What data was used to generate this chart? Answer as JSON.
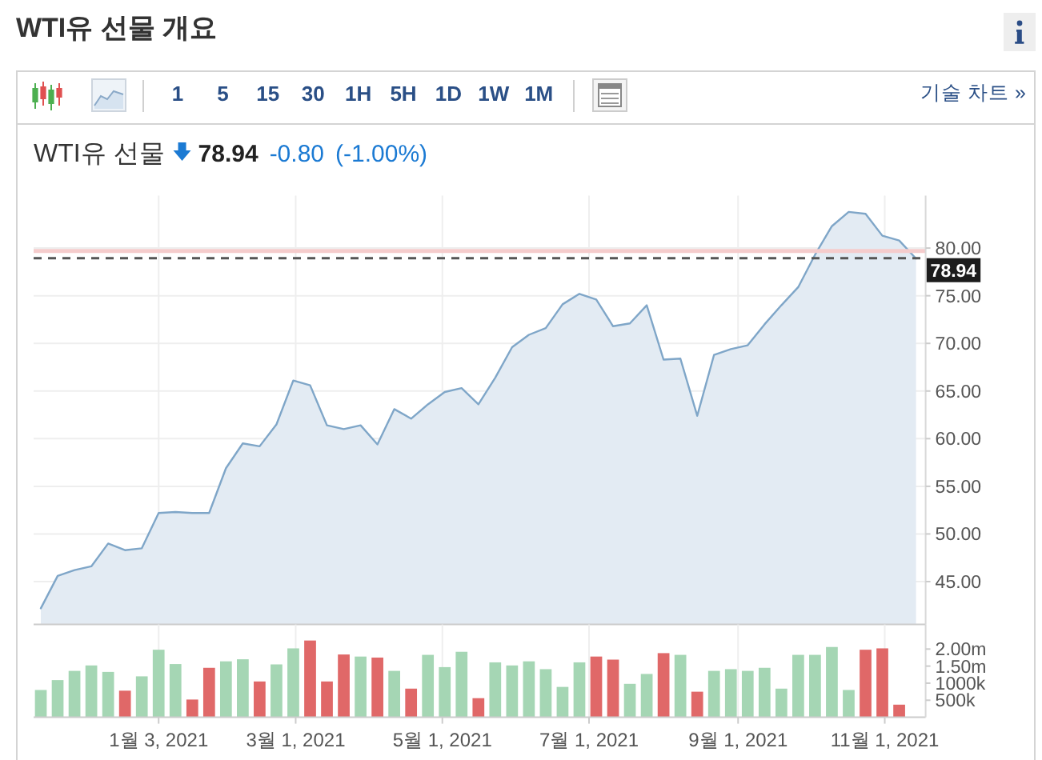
{
  "chart_data": [
    {
      "type": "other",
      "title": "WTI유 선물 개요",
      "annotations": [
        "1 5 15 30 1H 5H 1D 1W 1M",
        "기술 차트 »"
      ]
    },
    {
      "type": "area",
      "title": "WTI유 선물",
      "annotations": [
        "78.94",
        "-0.80",
        "(-1.00%)"
      ],
      "x": [
        "2020-11-15",
        "2020-11-22",
        "2020-11-29",
        "2020-12-06",
        "2020-12-13",
        "2020-12-20",
        "2020-12-27",
        "2021-01-03",
        "2021-01-10",
        "2021-01-17",
        "2021-01-24",
        "2021-01-31",
        "2021-02-07",
        "2021-02-14",
        "2021-02-21",
        "2021-02-28",
        "2021-03-07",
        "2021-03-14",
        "2021-03-21",
        "2021-03-28",
        "2021-04-04",
        "2021-04-11",
        "2021-04-18",
        "2021-04-25",
        "2021-05-02",
        "2021-05-09",
        "2021-05-16",
        "2021-05-23",
        "2021-05-30",
        "2021-06-06",
        "2021-06-13",
        "2021-06-20",
        "2021-06-27",
        "2021-07-04",
        "2021-07-11",
        "2021-07-18",
        "2021-07-25",
        "2021-08-01",
        "2021-08-08",
        "2021-08-15",
        "2021-08-22",
        "2021-08-29",
        "2021-09-05",
        "2021-09-12",
        "2021-09-19",
        "2021-09-26",
        "2021-10-03",
        "2021-10-10",
        "2021-10-17",
        "2021-10-24",
        "2021-10-31",
        "2021-11-07",
        "2021-11-14"
      ],
      "values": [
        42.2,
        45.6,
        46.2,
        46.6,
        49.0,
        48.3,
        48.5,
        52.2,
        52.3,
        52.2,
        52.2,
        56.9,
        59.5,
        59.2,
        61.5,
        66.1,
        65.6,
        61.4,
        61.0,
        61.4,
        59.4,
        63.1,
        62.1,
        63.6,
        64.9,
        65.3,
        63.6,
        66.4,
        69.6,
        70.9,
        71.6,
        74.1,
        75.2,
        74.6,
        71.8,
        72.1,
        74.0,
        68.3,
        68.4,
        62.4,
        68.8,
        69.4,
        69.8,
        72.0,
        74.0,
        75.9,
        79.3,
        82.3,
        83.8,
        83.6,
        81.3,
        80.8,
        78.9
      ],
      "color": "#7fa6c8",
      "xlim": [
        "2020-11-12",
        "2021-11-18"
      ],
      "xticks": [
        {
          "value": "2021-01-03",
          "label": null
        },
        {
          "value": "2021-03-01",
          "label": null
        },
        {
          "value": "2021-05-01",
          "label": null
        },
        {
          "value": "2021-07-01",
          "label": null
        },
        {
          "value": "2021-09-01",
          "label": null
        },
        {
          "value": "2021-11-01",
          "label": null
        }
      ],
      "ylim": [
        40.5,
        85.5
      ],
      "yticks": [
        {
          "value": 45,
          "label": "45.00"
        },
        {
          "value": 50,
          "label": "50.00"
        },
        {
          "value": 55,
          "label": "55.00"
        },
        {
          "value": 60,
          "label": "60.00"
        },
        {
          "value": 65,
          "label": "65.00"
        },
        {
          "value": 70,
          "label": "70.00"
        },
        {
          "value": 75,
          "label": "75.00"
        },
        {
          "value": 80,
          "label": "80.00"
        }
      ],
      "ref_lines": [
        {
          "axis": "y",
          "value": 79.7,
          "color": "#f5cccc"
        },
        {
          "axis": "y",
          "value": 78.94,
          "label": "78.94",
          "color": "#555555",
          "line_style": "dashed"
        }
      ],
      "grid": true,
      "tick_labels": "y"
    },
    {
      "type": "bar",
      "x": [
        "2020-11-15",
        "2020-11-22",
        "2020-11-29",
        "2020-12-06",
        "2020-12-13",
        "2020-12-20",
        "2020-12-27",
        "2021-01-03",
        "2021-01-10",
        "2021-01-17",
        "2021-01-24",
        "2021-01-31",
        "2021-02-07",
        "2021-02-14",
        "2021-02-21",
        "2021-02-28",
        "2021-03-07",
        "2021-03-14",
        "2021-03-21",
        "2021-03-28",
        "2021-04-04",
        "2021-04-11",
        "2021-04-18",
        "2021-04-25",
        "2021-05-02",
        "2021-05-09",
        "2021-05-16",
        "2021-05-23",
        "2021-05-30",
        "2021-06-06",
        "2021-06-13",
        "2021-06-20",
        "2021-06-27",
        "2021-07-04",
        "2021-07-11",
        "2021-07-18",
        "2021-07-25",
        "2021-08-01",
        "2021-08-08",
        "2021-08-15",
        "2021-08-22",
        "2021-08-29",
        "2021-09-05",
        "2021-09-12",
        "2021-09-19",
        "2021-09-26",
        "2021-10-03",
        "2021-10-10",
        "2021-10-17",
        "2021-10-24",
        "2021-10-31",
        "2021-11-07"
      ],
      "values": [
        800000,
        1090000,
        1360000,
        1520000,
        1330000,
        780000,
        1200000,
        1980000,
        1560000,
        520000,
        1450000,
        1640000,
        1700000,
        1050000,
        1550000,
        2020000,
        2250000,
        1050000,
        1840000,
        1780000,
        1750000,
        1360000,
        840000,
        1830000,
        1470000,
        1920000,
        560000,
        1610000,
        1520000,
        1640000,
        1410000,
        890000,
        1610000,
        1780000,
        1690000,
        980000,
        1270000,
        1880000,
        1830000,
        750000,
        1360000,
        1410000,
        1360000,
        1450000,
        840000,
        1830000,
        1830000,
        2060000,
        800000,
        1980000,
        2020000,
        370000
      ],
      "colors": [
        "#a5d6b4",
        "#a5d6b4",
        "#a5d6b4",
        "#a5d6b4",
        "#a5d6b4",
        "#e06868",
        "#a5d6b4",
        "#a5d6b4",
        "#a5d6b4",
        "#e06868",
        "#e06868",
        "#a5d6b4",
        "#a5d6b4",
        "#e06868",
        "#a5d6b4",
        "#a5d6b4",
        "#e06868",
        "#e06868",
        "#e06868",
        "#a5d6b4",
        "#e06868",
        "#a5d6b4",
        "#e06868",
        "#a5d6b4",
        "#a5d6b4",
        "#a5d6b4",
        "#e06868",
        "#a5d6b4",
        "#a5d6b4",
        "#a5d6b4",
        "#a5d6b4",
        "#a5d6b4",
        "#a5d6b4",
        "#e06868",
        "#e06868",
        "#a5d6b4",
        "#a5d6b4",
        "#e06868",
        "#a5d6b4",
        "#e06868",
        "#a5d6b4",
        "#a5d6b4",
        "#a5d6b4",
        "#a5d6b4",
        "#a5d6b4",
        "#a5d6b4",
        "#a5d6b4",
        "#a5d6b4",
        "#a5d6b4",
        "#e06868",
        "#e06868",
        "#e06868"
      ],
      "xlim": [
        "2020-11-12",
        "2021-11-18"
      ],
      "xticks": [
        {
          "value": "2021-01-03",
          "label": "1월 3, 2021"
        },
        {
          "value": "2021-03-01",
          "label": "3월 1, 2021"
        },
        {
          "value": "2021-05-01",
          "label": "5월 1, 2021"
        },
        {
          "value": "2021-07-01",
          "label": "7월 1, 2021"
        },
        {
          "value": "2021-09-01",
          "label": "9월 1, 2021"
        },
        {
          "value": "2021-11-01",
          "label": "11월 1, 2021"
        }
      ],
      "ylim": [
        0,
        2720000
      ],
      "yticks": [
        {
          "value": 500000,
          "label": "500k"
        },
        {
          "value": 1000000,
          "label": "1000k"
        },
        {
          "value": 1500000,
          "label": "1.50m"
        },
        {
          "value": 2000000,
          "label": "2.00m"
        }
      ],
      "grid": "x"
    }
  ]
}
